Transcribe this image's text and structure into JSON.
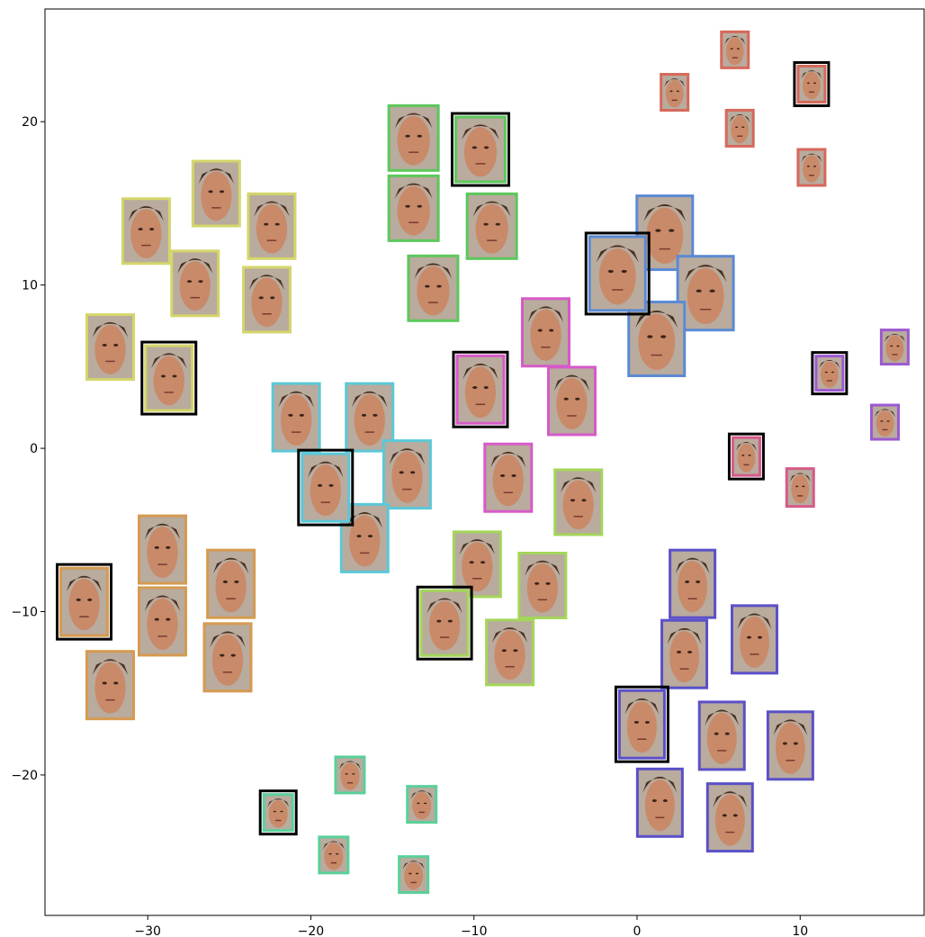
{
  "chart_data": {
    "type": "scatter",
    "xlim": [
      -36.3,
      17.6
    ],
    "ylim": [
      -28.6,
      26.9
    ],
    "xticks": [
      {
        "value": -30,
        "label": "−30"
      },
      {
        "value": -20,
        "label": "−20"
      },
      {
        "value": -10,
        "label": "−10"
      },
      0,
      10
    ],
    "yticks": [
      {
        "value": -20,
        "label": "−20"
      },
      {
        "value": -10,
        "label": "−10"
      },
      0,
      10,
      20
    ],
    "series": [
      {
        "color": "#d6695a",
        "x": [
          6.0,
          2.3,
          6.3,
          10.7,
          10.7
        ],
        "values": [
          24.4,
          21.8,
          19.6,
          17.2,
          22.3
        ],
        "outlined": 4
      },
      {
        "color": "#d4d66a",
        "x": [
          -30.1,
          -25.8,
          -22.4,
          -27.1,
          -22.7,
          -32.3,
          -28.7
        ],
        "values": [
          13.3,
          15.6,
          13.6,
          10.1,
          9.1,
          6.2,
          4.3
        ],
        "outlined": 6
      },
      {
        "color": "#5cc85c",
        "x": [
          -13.7,
          -9.6,
          -13.7,
          -8.9,
          -12.5
        ],
        "values": [
          19.0,
          18.3,
          14.7,
          13.6,
          9.8
        ],
        "outlined": 1
      },
      {
        "color": "#5b8ad4",
        "x": [
          1.7,
          4.2,
          1.2,
          -1.2
        ],
        "values": [
          13.2,
          9.5,
          6.7,
          10.7
        ],
        "outlined": 3
      },
      {
        "color": "#9c59d1",
        "x": [
          15.8,
          15.2,
          11.8
        ],
        "values": [
          6.2,
          1.6,
          4.6
        ],
        "outlined": 2
      },
      {
        "color": "#d65ac8",
        "x": [
          -5.6,
          -4.0,
          -7.9,
          -9.6
        ],
        "values": [
          7.1,
          2.9,
          -1.8,
          3.6
        ],
        "outlined": 3
      },
      {
        "color": "#d65a8a",
        "x": [
          10.0,
          6.7
        ],
        "values": [
          -2.4,
          -0.5
        ],
        "outlined": 1
      },
      {
        "color": "#5bc8d8",
        "x": [
          -20.9,
          -16.4,
          -14.1,
          -16.7,
          -19.1
        ],
        "values": [
          1.9,
          1.9,
          -1.6,
          -5.5,
          -2.4
        ],
        "outlined": 4
      },
      {
        "color": "#a4d65a",
        "x": [
          -3.6,
          -9.8,
          -5.8,
          -7.8,
          -11.8
        ],
        "values": [
          -3.3,
          -7.1,
          -8.4,
          -12.5,
          -10.7
        ],
        "outlined": 4
      },
      {
        "color": "#d69a50",
        "x": [
          -29.1,
          -24.9,
          -29.1,
          -25.1,
          -32.3,
          -33.9
        ],
        "values": [
          -6.2,
          -8.3,
          -10.6,
          -12.8,
          -14.5,
          -9.4
        ],
        "outlined": 5
      },
      {
        "color": "#5a50c8",
        "x": [
          3.4,
          2.9,
          7.2,
          5.2,
          9.4,
          1.4,
          5.7,
          0.3
        ],
        "values": [
          -8.3,
          -12.6,
          -11.7,
          -17.6,
          -18.2,
          -21.7,
          -22.6,
          -16.9
        ],
        "outlined": 7
      },
      {
        "color": "#5ad09a",
        "x": [
          -17.6,
          -13.2,
          -18.6,
          -13.7,
          -22.0
        ],
        "values": [
          -20.0,
          -21.8,
          -24.9,
          -26.1,
          -22.3
        ],
        "outlined": 4
      }
    ]
  }
}
